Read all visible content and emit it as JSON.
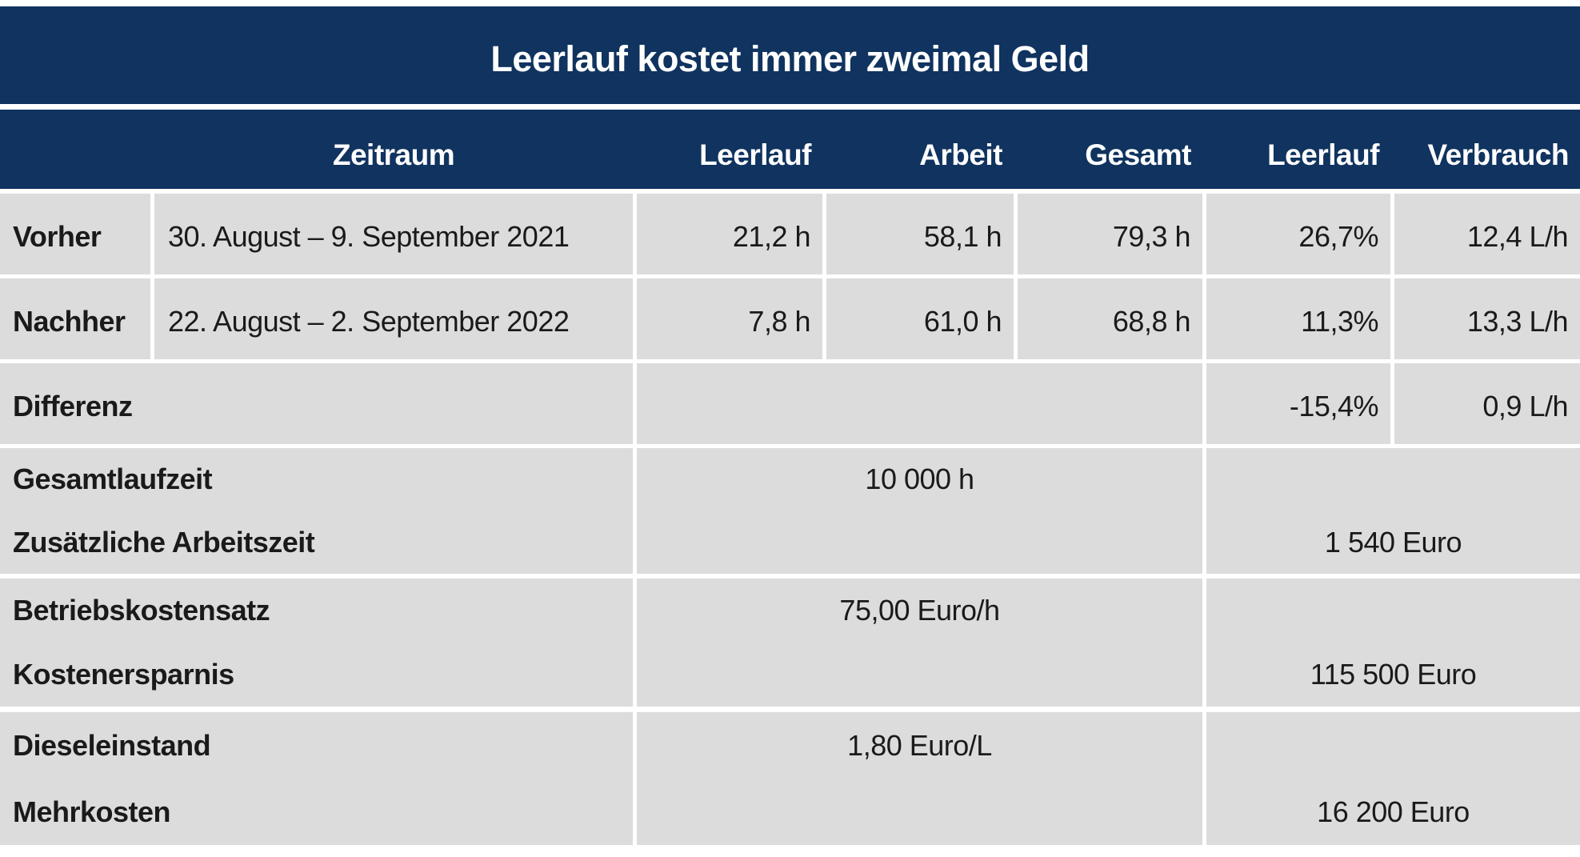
{
  "colors": {
    "navy": "#10335f",
    "cell_gray": "#dcdcdd",
    "header_text": "#ffffff",
    "body_text": "#1a1a1a",
    "background": "#ffffff"
  },
  "chart_data": {
    "type": "table",
    "title": "Leerlauf kostet immer zweimal Geld",
    "columns": [
      "",
      "Zeitraum",
      "Leerlauf",
      "Arbeit",
      "Gesamt",
      "Leerlauf",
      "Verbrauch"
    ],
    "rows": [
      [
        "Vorher",
        "30. August – 9. September 2021",
        "21,2 h",
        "58,1 h",
        "79,3 h",
        "26,7%",
        "12,4 L/h"
      ],
      [
        "Nachher",
        "22. August – 2. September 2022",
        "7,8 h",
        "61,0 h",
        "68,8 h",
        "11,3%",
        "13,3 L/h"
      ],
      [
        "Differenz",
        "",
        "",
        "",
        "",
        "-15,4%",
        "0,9 L/h"
      ]
    ],
    "summary": [
      {
        "label": "Gesamtlaufzeit",
        "value": "10 000 h"
      },
      {
        "label": "Zusätzliche Arbeitszeit",
        "value": "1 540 Euro"
      },
      {
        "label": "Betriebskostensatz",
        "value": "75,00 Euro/h"
      },
      {
        "label": "Kostenersparnis",
        "value": "115 500 Euro"
      },
      {
        "label": "Dieseleinstand",
        "value": "1,80 Euro/L"
      },
      {
        "label": "Mehrkosten",
        "value": "16 200 Euro"
      }
    ],
    "layout": {
      "legend": "none",
      "grid": "white gaps between gray cells",
      "header_style": "dark navy band with white bold text",
      "value_alignment": "right in data columns, centered in summary cells"
    }
  }
}
